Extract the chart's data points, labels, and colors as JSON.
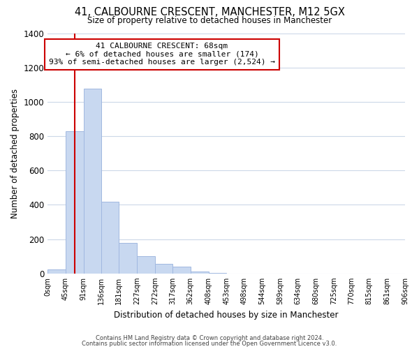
{
  "title": "41, CALBOURNE CRESCENT, MANCHESTER, M12 5GX",
  "subtitle": "Size of property relative to detached houses in Manchester",
  "xlabel": "Distribution of detached houses by size in Manchester",
  "ylabel": "Number of detached properties",
  "bar_color": "#c8d8f0",
  "bar_edge_color": "#a0b8e0",
  "property_line_color": "#cc0000",
  "property_value": 68,
  "annotation_box_color": "#cc0000",
  "annotation_lines": [
    "41 CALBOURNE CRESCENT: 68sqm",
    "← 6% of detached houses are smaller (174)",
    "93% of semi-detached houses are larger (2,524) →"
  ],
  "bins": [
    0,
    45,
    91,
    136,
    181,
    227,
    272,
    317,
    362,
    408,
    453,
    498,
    544,
    589,
    634,
    680,
    725,
    770,
    815,
    861,
    906
  ],
  "counts": [
    25,
    830,
    1075,
    420,
    180,
    100,
    57,
    38,
    10,
    2,
    1,
    0,
    0,
    0,
    0,
    0,
    0,
    0,
    0,
    0
  ],
  "ylim": [
    0,
    1400
  ],
  "yticks": [
    0,
    200,
    400,
    600,
    800,
    1000,
    1200,
    1400
  ],
  "tick_labels": [
    "0sqm",
    "45sqm",
    "91sqm",
    "136sqm",
    "181sqm",
    "227sqm",
    "272sqm",
    "317sqm",
    "362sqm",
    "408sqm",
    "453sqm",
    "498sqm",
    "544sqm",
    "589sqm",
    "634sqm",
    "680sqm",
    "725sqm",
    "770sqm",
    "815sqm",
    "861sqm",
    "906sqm"
  ],
  "footer_lines": [
    "Contains HM Land Registry data © Crown copyright and database right 2024.",
    "Contains public sector information licensed under the Open Government Licence v3.0."
  ],
  "background_color": "#ffffff",
  "grid_color": "#ccd8e8"
}
